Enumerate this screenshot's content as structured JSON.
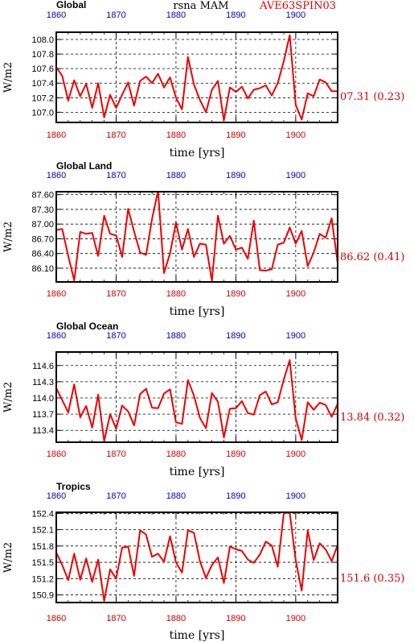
{
  "header": {
    "left": "Global",
    "center": "rsna  MAM",
    "right": "AVE63SPIN03",
    "right_color": "#dd0000"
  },
  "colors": {
    "line": "#ee0000",
    "tick_label_bottom": "#cc0000",
    "tick_label_top": "#0000cc",
    "axis": "#000000"
  },
  "chart_data": [
    {
      "type": "line",
      "title": "Global",
      "ylabel": "W/m2",
      "xlabel": "time [yrs]",
      "xlim": [
        1860,
        1907
      ],
      "ylim": [
        106.86,
        108.1
      ],
      "yticks": [
        "107.0",
        "107.2",
        "107.4",
        "107.6",
        "107.8",
        "108.0"
      ],
      "xticks": [
        "1860",
        "1870",
        "1880",
        "1890",
        "1900"
      ],
      "annotation": "07.31 (0.23)",
      "x": [
        1860,
        1861,
        1862,
        1863,
        1864,
        1865,
        1866,
        1867,
        1868,
        1869,
        1870,
        1871,
        1872,
        1873,
        1874,
        1875,
        1876,
        1877,
        1878,
        1879,
        1880,
        1881,
        1882,
        1883,
        1884,
        1885,
        1886,
        1887,
        1888,
        1889,
        1890,
        1891,
        1892,
        1893,
        1894,
        1895,
        1896,
        1897,
        1898,
        1899,
        1900,
        1901,
        1902,
        1903,
        1904,
        1905,
        1906,
        1907
      ],
      "y": [
        107.62,
        107.5,
        107.16,
        107.44,
        107.22,
        107.39,
        107.06,
        107.4,
        106.93,
        107.24,
        107.06,
        107.24,
        107.41,
        107.09,
        107.43,
        107.49,
        107.4,
        107.53,
        107.34,
        107.48,
        107.2,
        107.04,
        107.76,
        107.38,
        107.17,
        107.0,
        107.31,
        107.43,
        106.89,
        107.34,
        107.28,
        107.35,
        107.19,
        107.31,
        107.33,
        107.37,
        107.23,
        107.4,
        107.7,
        108.06,
        107.1,
        106.9,
        107.26,
        107.22,
        107.45,
        107.41,
        107.29,
        107.29
      ]
    },
    {
      "type": "line",
      "title": "Global Land",
      "ylabel": "W/m2",
      "xlabel": "time [yrs]",
      "xlim": [
        1860,
        1907
      ],
      "ylim": [
        85.82,
        87.66
      ],
      "yticks": [
        "86.10",
        "86.40",
        "86.70",
        "87.00",
        "87.30",
        "87.60"
      ],
      "xticks": [
        "1860",
        "1870",
        "1880",
        "1890",
        "1900"
      ],
      "annotation": "86.62 (0.41)",
      "x": [
        1860,
        1861,
        1862,
        1863,
        1864,
        1865,
        1866,
        1867,
        1868,
        1869,
        1870,
        1871,
        1872,
        1873,
        1874,
        1875,
        1876,
        1877,
        1878,
        1879,
        1880,
        1881,
        1882,
        1883,
        1884,
        1885,
        1886,
        1887,
        1888,
        1889,
        1890,
        1891,
        1892,
        1893,
        1894,
        1895,
        1896,
        1897,
        1898,
        1899,
        1900,
        1901,
        1902,
        1903,
        1904,
        1905,
        1906,
        1907
      ],
      "y": [
        86.88,
        86.9,
        86.35,
        85.85,
        86.84,
        86.8,
        86.82,
        86.35,
        87.17,
        86.8,
        86.77,
        86.33,
        87.31,
        86.85,
        86.42,
        86.37,
        87.1,
        87.68,
        86.0,
        86.4,
        87.03,
        86.48,
        86.9,
        86.33,
        86.6,
        86.58,
        85.84,
        87.17,
        86.6,
        86.76,
        86.48,
        86.52,
        86.29,
        87.07,
        86.06,
        86.05,
        86.08,
        86.58,
        86.62,
        86.93,
        86.6,
        86.86,
        86.14,
        86.42,
        86.8,
        86.72,
        87.12,
        86.21
      ]
    },
    {
      "type": "line",
      "title": "Global Ocean",
      "ylabel": "W/m2",
      "xlabel": "time [yrs]",
      "xlim": [
        1860,
        1907
      ],
      "ylim": [
        113.18,
        114.85
      ],
      "yticks": [
        "113.4",
        "113.7",
        "114.0",
        "114.3",
        "114.6"
      ],
      "xticks": [
        "1860",
        "1870",
        "1880",
        "1890",
        "1900"
      ],
      "annotation": "13.84 (0.32)",
      "x": [
        1860,
        1861,
        1862,
        1863,
        1864,
        1865,
        1866,
        1867,
        1868,
        1869,
        1870,
        1871,
        1872,
        1873,
        1874,
        1875,
        1876,
        1877,
        1878,
        1879,
        1880,
        1881,
        1882,
        1883,
        1884,
        1885,
        1886,
        1887,
        1888,
        1889,
        1890,
        1891,
        1892,
        1893,
        1894,
        1895,
        1896,
        1897,
        1898,
        1899,
        1900,
        1901,
        1902,
        1903,
        1904,
        1905,
        1906,
        1907
      ],
      "y": [
        114.18,
        113.96,
        113.73,
        114.25,
        113.64,
        113.85,
        113.45,
        114.06,
        113.2,
        113.7,
        113.43,
        113.86,
        113.75,
        113.49,
        114.07,
        114.17,
        113.82,
        113.81,
        114.08,
        114.16,
        113.55,
        113.52,
        114.33,
        114.04,
        113.63,
        113.44,
        114.09,
        113.93,
        113.27,
        113.8,
        113.81,
        113.94,
        113.72,
        113.69,
        114.05,
        114.12,
        113.88,
        113.92,
        114.34,
        114.7,
        113.62,
        113.22,
        113.92,
        113.78,
        113.91,
        113.87,
        113.65,
        113.89
      ]
    },
    {
      "type": "line",
      "title": "Tropics",
      "ylabel": "W/m2",
      "xlabel": "time [yrs]",
      "xlim": [
        1860,
        1907
      ],
      "ylim": [
        150.76,
        152.42
      ],
      "yticks": [
        "150.9",
        "151.2",
        "151.5",
        "151.8",
        "152.1",
        "152.4"
      ],
      "xticks": [
        "1860",
        "1870",
        "1880",
        "1890",
        "1900"
      ],
      "annotation": "151.6 (0.35)",
      "x": [
        1860,
        1861,
        1862,
        1863,
        1864,
        1865,
        1866,
        1867,
        1868,
        1869,
        1870,
        1871,
        1872,
        1873,
        1874,
        1875,
        1876,
        1877,
        1878,
        1879,
        1880,
        1881,
        1882,
        1883,
        1884,
        1885,
        1886,
        1887,
        1888,
        1889,
        1890,
        1891,
        1892,
        1893,
        1894,
        1895,
        1896,
        1897,
        1898,
        1899,
        1900,
        1901,
        1902,
        1903,
        1904,
        1905,
        1906,
        1907
      ],
      "y": [
        151.68,
        151.45,
        151.17,
        151.66,
        151.18,
        151.57,
        151.14,
        151.55,
        150.79,
        151.37,
        151.2,
        151.77,
        151.79,
        151.25,
        152.09,
        152.01,
        151.6,
        151.66,
        151.51,
        151.98,
        151.5,
        151.31,
        152.09,
        152.04,
        151.52,
        151.21,
        151.45,
        151.59,
        151.12,
        151.79,
        151.74,
        151.71,
        151.55,
        151.49,
        151.64,
        151.88,
        151.81,
        151.42,
        152.4,
        152.42,
        151.53,
        150.98,
        152.09,
        151.54,
        151.85,
        151.74,
        151.52,
        151.82
      ]
    }
  ]
}
